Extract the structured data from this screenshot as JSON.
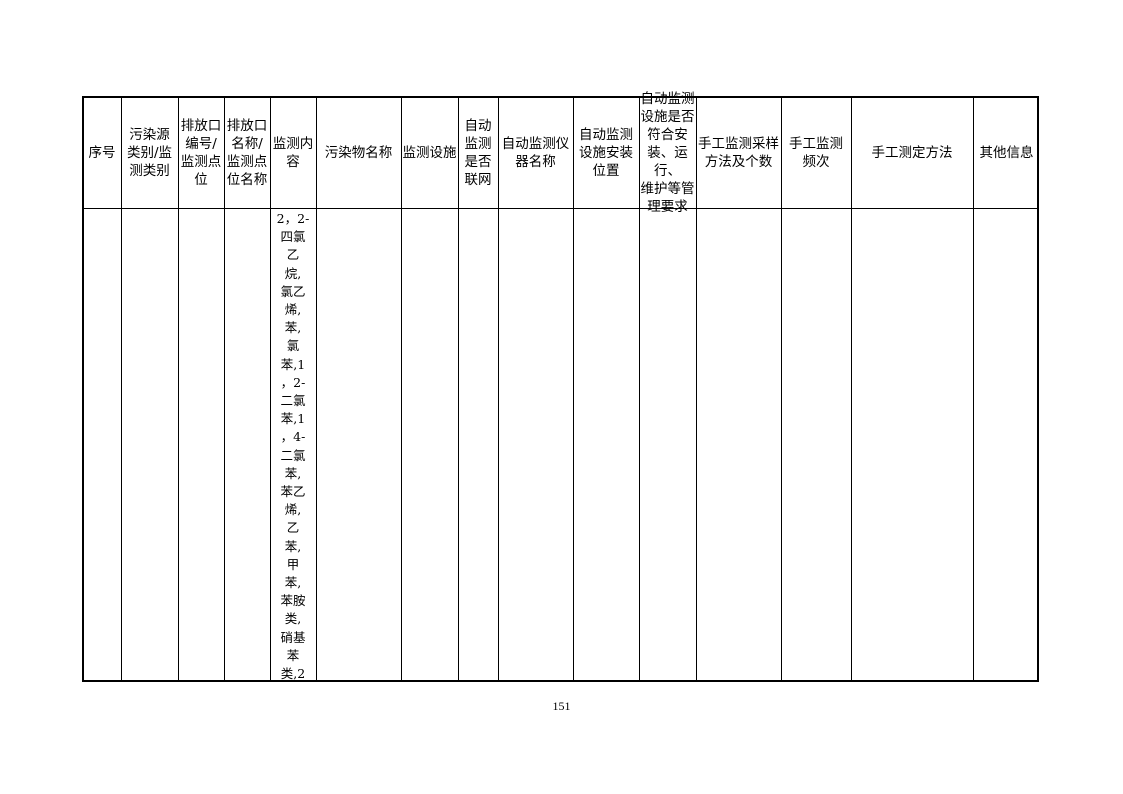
{
  "table": {
    "headers": [
      "序号",
      "污染源\n类别/监\n测类别",
      "排放口\n编号/\n监测点\n位",
      "排放口\n名称/\n监测点\n位名称",
      "监测内\n容",
      "污染物名称",
      "监测设施",
      "自动\n监测\n是否\n联网",
      "自动监测仪\n器名称",
      "自动监测\n设施安装\n位置",
      "自动监测\n设施是否\n符合安\n装、运行、\n维护等管\n理要求",
      "手工监测采样\n方法及个数",
      "手工监测\n频次",
      "手工测定方法",
      "其他信息"
    ],
    "row": {
      "monitoring_content_lines": [
        "2，2-",
        "四氯",
        "乙",
        "烷,",
        "氯乙",
        "烯,",
        "苯,",
        "氯",
        "苯,1",
        "，2-",
        "二氯",
        "苯,1",
        "，4-",
        "二氯",
        "苯,",
        "苯乙",
        "烯,",
        "乙",
        "苯,",
        "甲",
        "苯,",
        "苯胺",
        "类,",
        "硝基",
        "苯",
        "类,2"
      ]
    }
  },
  "page_number": "151"
}
